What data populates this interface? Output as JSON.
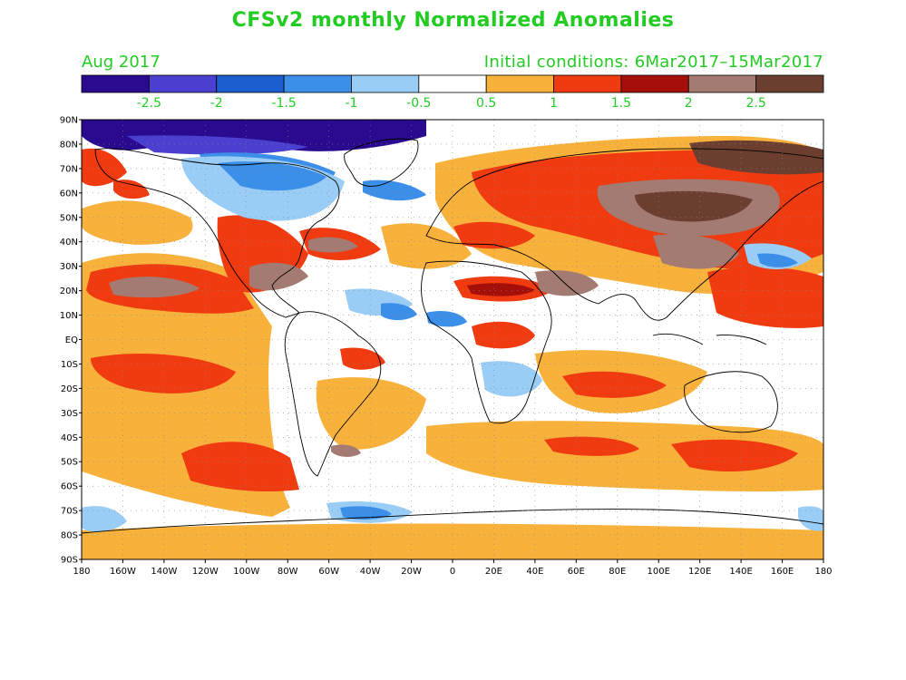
{
  "title": "CFSv2 monthly Normalized Anomalies",
  "month_label": "Aug 2017",
  "initial_conditions": "Initial conditions: 6Mar2017–15Mar2017",
  "colors": {
    "title_text": "#22cc22",
    "levels": [
      "#2a0a8f",
      "#4a3fcf",
      "#1a5ed0",
      "#3c8fe8",
      "#9acdf5",
      "#ffffff",
      "#f8b23c",
      "#f03a10",
      "#a50f0a",
      "#a47b72",
      "#6b3e30"
    ]
  },
  "colorbar": {
    "tick_labels": [
      "-2.5",
      "-2",
      "-1.5",
      "-1",
      "-0.5",
      "0.5",
      "1",
      "1.5",
      "2",
      "2.5"
    ]
  },
  "map": {
    "lat_labels": [
      "90N",
      "80N",
      "70N",
      "60N",
      "50N",
      "40N",
      "30N",
      "20N",
      "10N",
      "EQ",
      "10S",
      "20S",
      "30S",
      "40S",
      "50S",
      "60S",
      "70S",
      "80S",
      "90S"
    ],
    "lon_labels": [
      "180",
      "160W",
      "140W",
      "120W",
      "100W",
      "80W",
      "60W",
      "40W",
      "20W",
      "0",
      "20E",
      "40E",
      "60E",
      "80E",
      "100E",
      "120E",
      "140E",
      "160E",
      "180"
    ]
  }
}
